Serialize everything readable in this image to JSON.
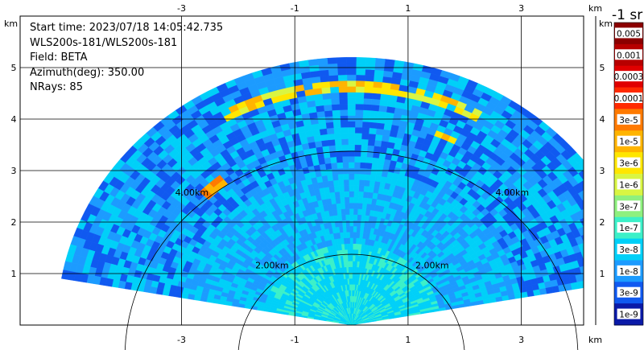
{
  "chart_data": {
    "type": "heatmap",
    "subtype": "radar-ppi-sector",
    "info": {
      "start_time": "Start time: 2023/07/18 14:05:42.735",
      "instrument": "WLS200s-181/WLS200s-181",
      "field": "Field: BETA",
      "azimuth": "Azimuth(deg): 350.00",
      "nrays": "NRays: 85"
    },
    "x_unit": "km",
    "y_unit": "km",
    "x_ticks": [
      -3,
      -1,
      1,
      3
    ],
    "y_ticks": [
      1,
      2,
      3,
      4,
      5
    ],
    "xlim": [
      -5.85,
      4.1
    ],
    "ylim": [
      0,
      6.0
    ],
    "max_range_km": 5.2,
    "min_elev_deg": 10,
    "range_rings": [
      {
        "radius_km": 2.0,
        "label": "2.00km"
      },
      {
        "radius_km": 4.0,
        "label": "4.00km"
      }
    ],
    "colorbar": {
      "title": "-1 sr",
      "labels": [
        "0.005",
        "0.001",
        "0.0003",
        "0.0001",
        "3e-5",
        "1e-5",
        "3e-6",
        "1e-6",
        "3e-7",
        "1e-7",
        "3e-8",
        "1e-8",
        "3e-9",
        "1e-9"
      ],
      "colors": [
        "#8b0000",
        "#b70000",
        "#e00000",
        "#ff2a00",
        "#ff7a00",
        "#ffb400",
        "#ffe600",
        "#d9f542",
        "#8ef07e",
        "#3cf0c8",
        "#00d0f8",
        "#1c9bff",
        "#1059f0",
        "#0a1aa8"
      ]
    },
    "features": [
      {
        "name": "high backscatter band",
        "range_km": [
          4.55,
          4.75
        ],
        "value": "1e-5"
      },
      {
        "name": "patch left",
        "range_km": [
          3.6,
          3.7
        ],
        "value": "3e-6"
      },
      {
        "name": "patch right",
        "range_km": [
          3.95,
          4.05
        ],
        "value": "1e-5"
      },
      {
        "name": "near field",
        "range_km": [
          0.0,
          1.6
        ],
        "value": "1e-7"
      }
    ]
  }
}
